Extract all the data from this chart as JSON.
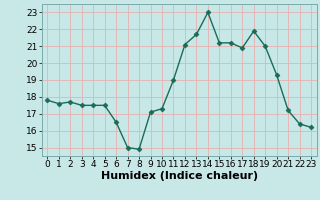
{
  "x": [
    0,
    1,
    2,
    3,
    4,
    5,
    6,
    7,
    8,
    9,
    10,
    11,
    12,
    13,
    14,
    15,
    16,
    17,
    18,
    19,
    20,
    21,
    22,
    23
  ],
  "y": [
    17.8,
    17.6,
    17.7,
    17.5,
    17.5,
    17.5,
    16.5,
    15.0,
    14.9,
    17.1,
    17.3,
    19.0,
    21.1,
    21.7,
    23.0,
    21.2,
    21.2,
    20.9,
    21.9,
    21.0,
    19.3,
    17.2,
    16.4,
    16.2
  ],
  "line_color": "#1a6b5a",
  "bg_color": "#c8e8e8",
  "grid_color": "#e8b0b0",
  "xlabel": "Humidex (Indice chaleur)",
  "xlim": [
    -0.5,
    23.5
  ],
  "ylim": [
    14.5,
    23.5
  ],
  "yticks": [
    15,
    16,
    17,
    18,
    19,
    20,
    21,
    22,
    23
  ],
  "xticks": [
    0,
    1,
    2,
    3,
    4,
    5,
    6,
    7,
    8,
    9,
    10,
    11,
    12,
    13,
    14,
    15,
    16,
    17,
    18,
    19,
    20,
    21,
    22,
    23
  ],
  "marker": "D",
  "markersize": 2.5,
  "linewidth": 1.0,
  "xlabel_fontsize": 8,
  "tick_fontsize": 6.5
}
